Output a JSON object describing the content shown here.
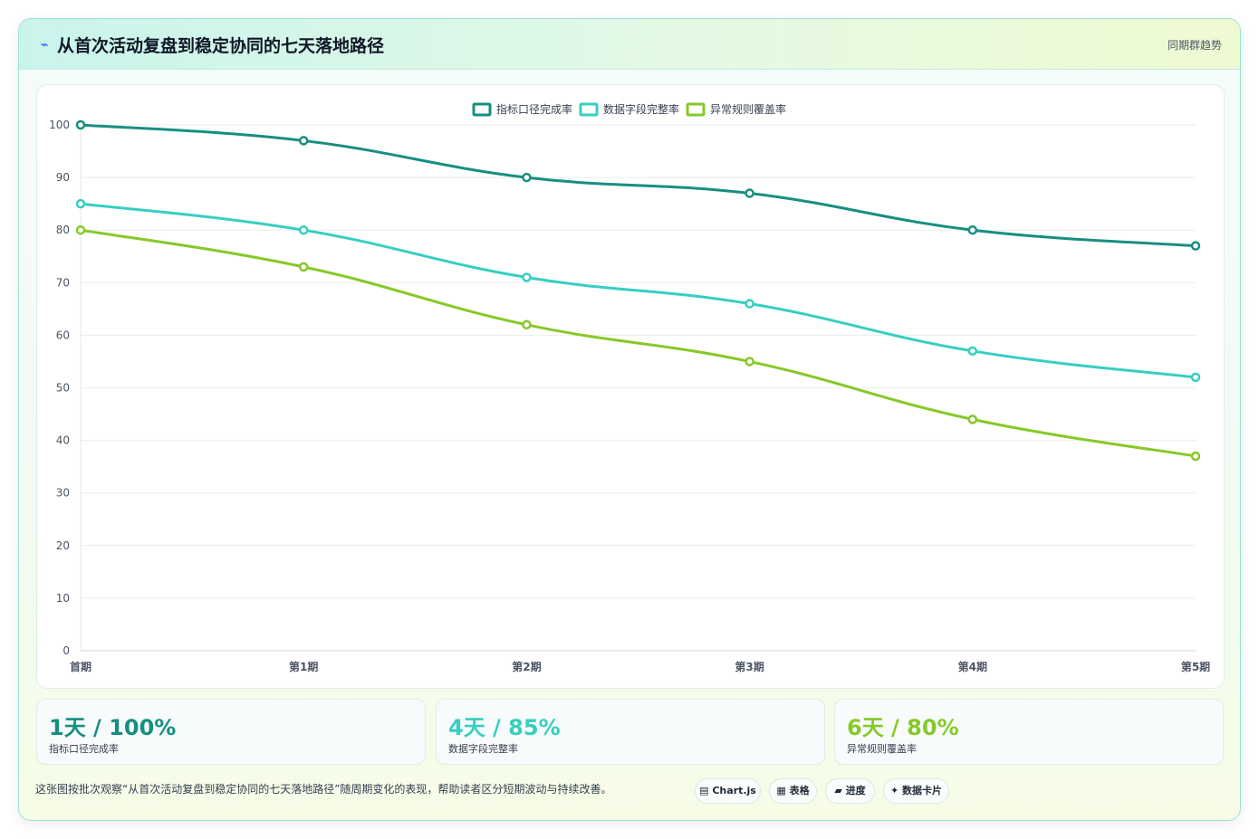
{
  "header": {
    "icon": "bolt-icon",
    "title": "从首次活动复盘到稳定协同的七天落地路径",
    "tag": "同期群趋势"
  },
  "chart_data": {
    "type": "line",
    "categories": [
      "首期",
      "第1期",
      "第2期",
      "第3期",
      "第4期",
      "第5期"
    ],
    "series": [
      {
        "name": "指标口径完成率",
        "color": "#178f80",
        "values": [
          100,
          97,
          90,
          87,
          80,
          77
        ]
      },
      {
        "name": "数据字段完整率",
        "color": "#36cfc0",
        "values": [
          85,
          80,
          71,
          66,
          57,
          52
        ]
      },
      {
        "name": "异常规则覆盖率",
        "color": "#86c928",
        "values": [
          80,
          73,
          62,
          55,
          44,
          37
        ]
      }
    ],
    "ylim": [
      0,
      100
    ],
    "yticks": [
      0,
      10,
      20,
      30,
      40,
      50,
      60,
      70,
      80,
      90,
      100
    ],
    "grid": true,
    "legend": "top-center"
  },
  "stats": [
    {
      "value": "1天 / 100%",
      "label": "指标口径完成率",
      "color": "#178f80"
    },
    {
      "value": "4天 / 85%",
      "label": "数据字段完整率",
      "color": "#36cfc0"
    },
    {
      "value": "6天 / 80%",
      "label": "异常规则覆盖率",
      "color": "#86c928"
    }
  ],
  "footer": {
    "text": "这张图按批次观察“从首次活动复盘到稳定协同的七天落地路径”随周期变化的表现，帮助读者区分短期波动与持续改善。",
    "chips": [
      "▤ Chart.js",
      "▦ 表格",
      "▰ 进度",
      "✦ 数据卡片"
    ]
  }
}
